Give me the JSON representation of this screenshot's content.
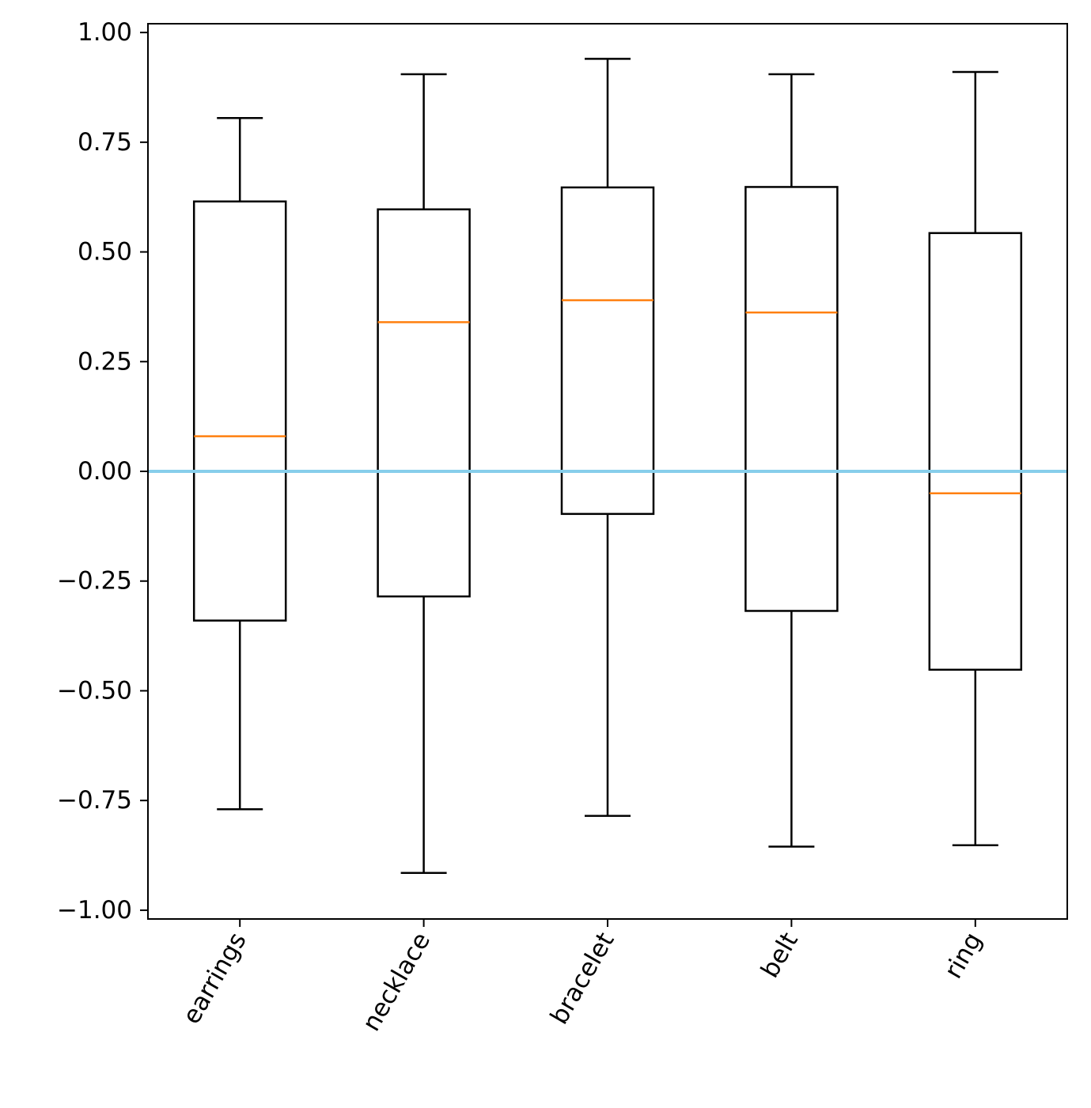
{
  "chart_data": {
    "type": "box",
    "title": "",
    "xlabel": "",
    "ylabel": "",
    "ylim": [
      -1.02,
      1.02
    ],
    "yticks": [
      {
        "value": 1.0,
        "label": "1.00"
      },
      {
        "value": 0.75,
        "label": "0.75"
      },
      {
        "value": 0.5,
        "label": "0.50"
      },
      {
        "value": 0.25,
        "label": "0.25"
      },
      {
        "value": 0.0,
        "label": "0.00"
      },
      {
        "value": -0.25,
        "label": "−0.25"
      },
      {
        "value": -0.5,
        "label": "−0.50"
      },
      {
        "value": -0.75,
        "label": "−0.75"
      },
      {
        "value": -1.0,
        "label": "−1.00"
      }
    ],
    "categories": [
      "earrings",
      "necklace",
      "bracelet",
      "belt",
      "ring"
    ],
    "boxes": [
      {
        "name": "earrings",
        "whisker_low": -0.77,
        "q1": -0.34,
        "median": 0.08,
        "q3": 0.615,
        "whisker_high": 0.805
      },
      {
        "name": "necklace",
        "whisker_low": -0.915,
        "q1": -0.285,
        "median": 0.34,
        "q3": 0.597,
        "whisker_high": 0.905
      },
      {
        "name": "bracelet",
        "whisker_low": -0.785,
        "q1": -0.097,
        "median": 0.39,
        "q3": 0.647,
        "whisker_high": 0.94
      },
      {
        "name": "belt",
        "whisker_low": -0.855,
        "q1": -0.318,
        "median": 0.362,
        "q3": 0.648,
        "whisker_high": 0.905
      },
      {
        "name": "ring",
        "whisker_low": -0.852,
        "q1": -0.452,
        "median": -0.05,
        "q3": 0.543,
        "whisker_high": 0.91
      }
    ],
    "reference_line": {
      "value": 0.0,
      "color": "#87ceeb"
    },
    "colors": {
      "box": "#000000",
      "median": "#ff7f0e",
      "axis": "#000000"
    },
    "grid": false,
    "xtick_rotation_deg": 60
  }
}
